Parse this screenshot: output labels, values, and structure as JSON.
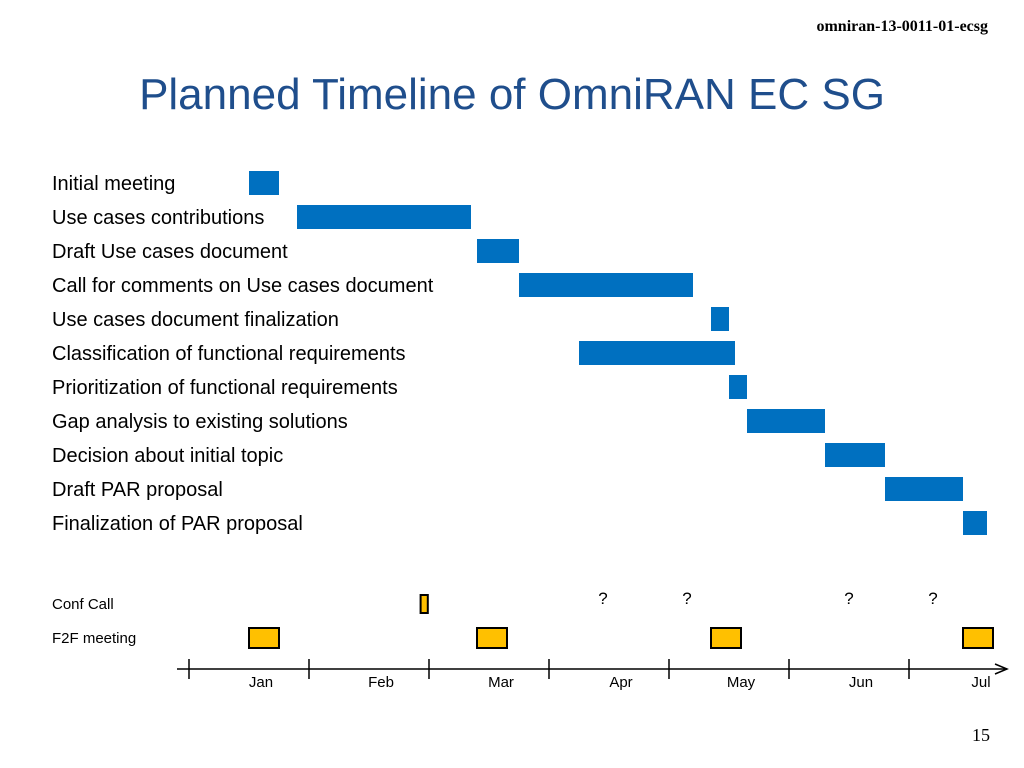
{
  "doc_id": "omniran-13-0011-01-ecsg",
  "title": "Planned Timeline of OmniRAN EC SG",
  "page_number": "15",
  "colors": {
    "task_bar": "#0070c0",
    "meeting_fill": "#ffc000",
    "meeting_stroke": "#000000",
    "title": "#1f4e8c"
  },
  "chart_data": {
    "type": "gantt",
    "title": "Planned Timeline of OmniRAN EC SG",
    "x_unit": "months",
    "months": [
      "Jan",
      "Feb",
      "Mar",
      "Apr",
      "May",
      "Jun",
      "Jul"
    ],
    "xlim": [
      -0.55,
      6.2
    ],
    "tasks": [
      {
        "label": "Initial meeting",
        "start": -0.05,
        "end": 0.2
      },
      {
        "label": "Use cases contributions",
        "start": 0.35,
        "end": 1.8
      },
      {
        "label": "Draft Use cases document",
        "start": 1.85,
        "end": 2.2
      },
      {
        "label": "Call for comments on Use cases document",
        "start": 2.2,
        "end": 3.65
      },
      {
        "label": "Use cases document finalization",
        "start": 3.8,
        "end": 3.95
      },
      {
        "label": "Classification of functional requirements",
        "start": 2.7,
        "end": 4.0
      },
      {
        "label": "Prioritization of functional requirements",
        "start": 3.95,
        "end": 4.1
      },
      {
        "label": "Gap analysis to existing solutions",
        "start": 4.1,
        "end": 4.75
      },
      {
        "label": "Decision about initial topic",
        "start": 4.75,
        "end": 5.25
      },
      {
        "label": "Draft PAR proposal",
        "start": 5.25,
        "end": 5.9
      },
      {
        "label": "Finalization of PAR proposal",
        "start": 5.9,
        "end": 6.1
      }
    ],
    "conf_call": {
      "label": "Conf Call",
      "events": [
        {
          "start": 1.38,
          "end": 1.44
        }
      ],
      "tentative": [
        {
          "at": 2.9,
          "text": "?"
        },
        {
          "at": 3.6,
          "text": "?"
        },
        {
          "at": 4.95,
          "text": "?"
        },
        {
          "at": 5.65,
          "text": "?"
        }
      ]
    },
    "f2f_meeting": {
      "label": "F2F meeting",
      "events": [
        {
          "start": -0.05,
          "end": 0.2
        },
        {
          "start": 1.85,
          "end": 2.1
        },
        {
          "start": 3.8,
          "end": 4.05
        },
        {
          "start": 5.9,
          "end": 6.15
        }
      ]
    }
  }
}
